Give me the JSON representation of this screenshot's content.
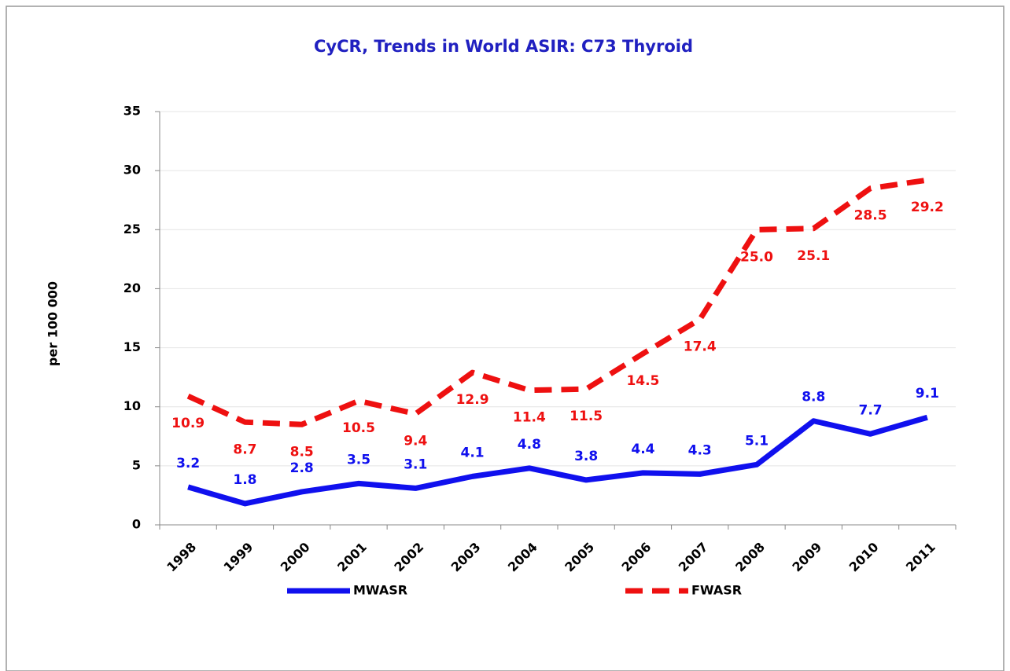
{
  "chart_data": {
    "type": "line",
    "title": "CyCR,  Trends in World ASIR:  C73 Thyroid",
    "y_label": "per 100 000",
    "categories": [
      "1998",
      "1999",
      "2000",
      "2001",
      "2002",
      "2003",
      "2004",
      "2005",
      "2006",
      "2007",
      "2008",
      "2009",
      "2010",
      "2011"
    ],
    "series": [
      {
        "name": "MWASR",
        "color": "#1010ee",
        "dashed": false,
        "values": [
          3.2,
          1.8,
          2.8,
          3.5,
          3.1,
          4.1,
          4.8,
          3.8,
          4.4,
          4.3,
          5.1,
          8.8,
          7.7,
          9.1
        ],
        "value_labels": [
          "3.2",
          "1.8",
          "2.8",
          "3.5",
          "3.1",
          "4.1",
          "4.8",
          "3.8",
          "4.4",
          "4.3",
          "5.1",
          "8.8",
          "7.7",
          "9.1"
        ]
      },
      {
        "name": "FWASR",
        "color": "#ee1010",
        "dashed": true,
        "values": [
          10.9,
          8.7,
          8.5,
          10.5,
          9.4,
          12.9,
          11.4,
          11.5,
          14.5,
          17.4,
          25.0,
          25.1,
          28.5,
          29.2
        ],
        "value_labels": [
          "10.9",
          "8.7",
          "8.5",
          "10.5",
          "9.4",
          "12.9",
          "11.4",
          "11.5",
          "14.5",
          "17.4",
          "25.0",
          "25.1",
          "28.5",
          "29.2"
        ]
      }
    ],
    "ylim": [
      0,
      35
    ],
    "yticks": [
      0,
      5,
      10,
      15,
      20,
      25,
      30,
      35
    ],
    "grid": true,
    "legend": "bottom"
  }
}
